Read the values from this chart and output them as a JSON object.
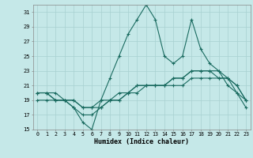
{
  "xlabel": "Humidex (Indice chaleur)",
  "bg_color": "#c5e8e8",
  "grid_color": "#a8d0d0",
  "line_color": "#1a6b60",
  "xmin": -0.5,
  "xmax": 23.5,
  "ymin": 15,
  "ymax": 32,
  "yticks": [
    15,
    17,
    19,
    21,
    23,
    25,
    27,
    29,
    31
  ],
  "xticks": [
    0,
    1,
    2,
    3,
    4,
    5,
    6,
    7,
    8,
    9,
    10,
    11,
    12,
    13,
    14,
    15,
    16,
    17,
    18,
    19,
    20,
    21,
    22,
    23
  ],
  "line1_x": [
    0,
    1,
    2,
    3,
    4,
    5,
    6,
    7,
    8,
    9,
    10,
    11,
    12,
    13,
    14,
    15,
    16,
    17,
    18,
    19,
    20,
    21,
    22,
    23
  ],
  "line1_y": [
    20,
    20,
    19,
    19,
    18,
    16,
    15,
    19,
    22,
    25,
    28,
    30,
    32,
    30,
    25,
    24,
    25,
    30,
    26,
    24,
    23,
    21,
    20,
    18
  ],
  "line2_x": [
    0,
    1,
    2,
    3,
    4,
    5,
    6,
    7,
    8,
    9,
    10,
    11,
    12,
    13,
    14,
    15,
    16,
    17,
    18,
    19,
    20,
    21,
    22,
    23
  ],
  "line2_y": [
    19,
    19,
    19,
    19,
    18,
    17,
    17,
    18,
    19,
    19,
    20,
    21,
    21,
    21,
    21,
    22,
    22,
    23,
    23,
    23,
    23,
    22,
    21,
    19
  ],
  "line3_x": [
    0,
    1,
    2,
    3,
    4,
    5,
    6,
    7,
    8,
    9,
    10,
    11,
    12,
    13,
    14,
    15,
    16,
    17,
    18,
    19,
    20,
    21,
    22,
    23
  ],
  "line3_y": [
    20,
    20,
    20,
    19,
    19,
    18,
    18,
    19,
    19,
    20,
    20,
    21,
    21,
    21,
    21,
    22,
    22,
    23,
    23,
    23,
    22,
    22,
    20,
    19
  ],
  "line4_x": [
    0,
    1,
    2,
    3,
    4,
    5,
    6,
    7,
    8,
    9,
    10,
    11,
    12,
    13,
    14,
    15,
    16,
    17,
    18,
    19,
    20,
    21,
    22,
    23
  ],
  "line4_y": [
    20,
    20,
    19,
    19,
    19,
    18,
    18,
    18,
    19,
    19,
    20,
    20,
    21,
    21,
    21,
    21,
    21,
    22,
    22,
    22,
    22,
    22,
    21,
    19
  ]
}
